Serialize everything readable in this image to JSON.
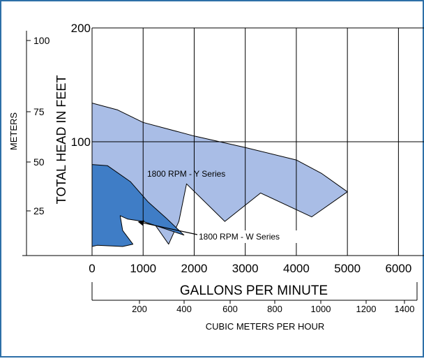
{
  "chart_data": {
    "type": "area",
    "x_axis": {
      "label": "GALLONS PER MINUTE",
      "range": [
        0,
        6500
      ],
      "ticks": [
        0,
        1000,
        2000,
        3000,
        4000,
        5000,
        6000
      ],
      "tick_labels": [
        "0",
        "1000",
        "2000",
        "3000",
        "4000",
        "5000",
        "6000"
      ]
    },
    "y_axis": {
      "label": "TOTAL HEAD IN FEET",
      "range": [
        0,
        200
      ],
      "ticks": [
        100,
        200
      ],
      "tick_labels": [
        "100",
        "200"
      ]
    },
    "secondary_x_axis": {
      "label": "CUBIC METERS PER HOUR",
      "ticks": [
        200,
        400,
        600,
        800,
        1000,
        1200,
        1400
      ],
      "tick_labels": [
        "200",
        "400",
        "600",
        "800",
        "1000",
        "1200",
        "1400"
      ]
    },
    "secondary_y_axis": {
      "label": "METERS",
      "ticks": [
        25,
        50,
        75,
        100
      ],
      "tick_labels": [
        "25",
        "50",
        "75",
        "100"
      ]
    },
    "grid": true,
    "series": [
      {
        "name": "1800 RPM - Y Series",
        "color": "#a9bde6",
        "points": [
          [
            0,
            134
          ],
          [
            500,
            128
          ],
          [
            1000,
            117
          ],
          [
            2000,
            105
          ],
          [
            3000,
            95
          ],
          [
            4000,
            84
          ],
          [
            4500,
            72
          ],
          [
            5000,
            56
          ],
          [
            4300,
            34
          ],
          [
            3300,
            55
          ],
          [
            2600,
            30
          ],
          [
            1850,
            63
          ],
          [
            1700,
            30
          ],
          [
            1500,
            10
          ],
          [
            1250,
            26
          ],
          [
            1200,
            28
          ],
          [
            0,
            80
          ]
        ]
      },
      {
        "name": "1800 RPM - W Series",
        "color": "#3f7dc6",
        "points": [
          [
            0,
            80
          ],
          [
            300,
            79
          ],
          [
            750,
            65
          ],
          [
            1100,
            47
          ],
          [
            1450,
            33
          ],
          [
            1800,
            18
          ],
          [
            1000,
            30
          ],
          [
            700,
            32
          ],
          [
            550,
            35
          ],
          [
            600,
            22
          ],
          [
            800,
            10
          ],
          [
            600,
            8
          ],
          [
            100,
            9
          ],
          [
            0,
            8
          ]
        ]
      }
    ],
    "annotations": [
      {
        "text": "1800 RPM - Y Series",
        "series": "1800 RPM - Y Series"
      },
      {
        "text": "1800 RPM - W Series",
        "series": "1800 RPM - W Series",
        "arrow_to": [
          800,
          32
        ]
      }
    ]
  }
}
